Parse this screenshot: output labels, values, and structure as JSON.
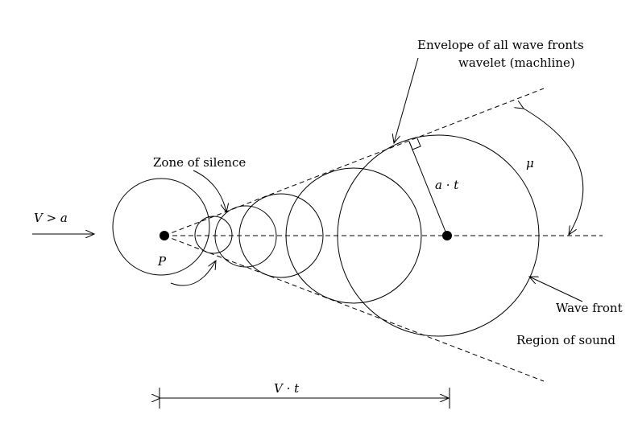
{
  "labels": {
    "envelope_line1": "Envelope of all wave fronts",
    "envelope_line2": "wavelet (machline)",
    "zone_of_silence": "Zone of silence",
    "mu": "μ",
    "a_t": "a · t",
    "v_gt_a": "V > a",
    "p": "P",
    "wave_front": "Wave front",
    "region_of_sound": "Region of sound",
    "v_t": "V · t"
  }
}
